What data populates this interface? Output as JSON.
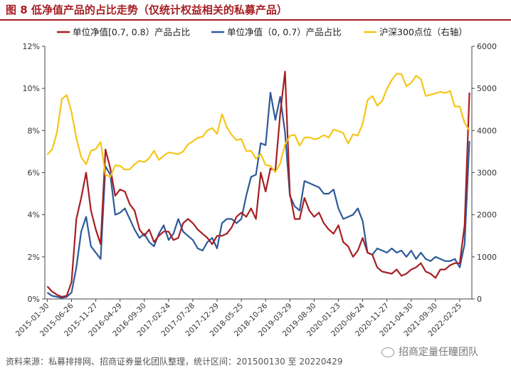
{
  "figure": {
    "title": "图 8  低净值产品的占比走势（仅统计权益相关的私募产品）",
    "footer": "资料来源：私募排排网、招商证券量化团队整理，统计区间：201500130 至 20220429",
    "watermark": "招商定量任瞳团队"
  },
  "chart_data": {
    "type": "line",
    "legend_position": "top",
    "grid": false,
    "x": [
      "2015-01-30",
      "2015-02-27",
      "2015-03-31",
      "2015-04-30",
      "2015-05-29",
      "2015-06-26",
      "2015-07-31",
      "2015-08-31",
      "2015-09-30",
      "2015-10-30",
      "2015-11-27",
      "2015-12-31",
      "2016-01-29",
      "2016-02-29",
      "2016-03-31",
      "2016-04-29",
      "2016-05-31",
      "2016-06-30",
      "2016-07-29",
      "2016-08-31",
      "2016-09-30",
      "2016-10-31",
      "2016-11-30",
      "2016-12-30",
      "2017-01-26",
      "2017-02-24",
      "2017-03-31",
      "2017-04-28",
      "2017-05-31",
      "2017-06-30",
      "2017-07-28",
      "2017-08-31",
      "2017-09-29",
      "2017-10-31",
      "2017-11-30",
      "2017-12-29",
      "2018-01-31",
      "2018-02-28",
      "2018-03-30",
      "2018-04-27",
      "2018-05-25",
      "2018-06-29",
      "2018-07-31",
      "2018-08-31",
      "2018-09-28",
      "2018-10-26",
      "2018-11-30",
      "2018-12-28",
      "2019-01-31",
      "2019-02-28",
      "2019-03-29",
      "2019-04-30",
      "2019-05-31",
      "2019-06-28",
      "2019-07-31",
      "2019-08-30",
      "2019-09-30",
      "2019-10-31",
      "2019-11-29",
      "2019-12-31",
      "2020-01-23",
      "2020-02-28",
      "2020-03-31",
      "2020-04-30",
      "2020-05-29",
      "2020-06-24",
      "2020-07-31",
      "2020-08-31",
      "2020-09-30",
      "2020-10-30",
      "2020-11-27",
      "2020-12-31",
      "2021-01-29",
      "2021-02-26",
      "2021-03-31",
      "2021-04-30",
      "2021-05-31",
      "2021-06-30",
      "2021-07-30",
      "2021-08-31",
      "2021-09-30",
      "2021-10-29",
      "2021-11-30",
      "2021-12-31",
      "2022-01-28",
      "2022-02-25",
      "2022-03-31",
      "2022-04-29"
    ],
    "x_tick_labels": [
      "2015-01-30",
      "2015-06-26",
      "2015-11-27",
      "2016-04-29",
      "2016-09-30",
      "2017-02-24",
      "2017-07-28",
      "2017-12-29",
      "2018-05-25",
      "2018-10-26",
      "2019-03-29",
      "2019-08-30",
      "2020-01-23",
      "2020-06-24",
      "2020-11-27",
      "2021-04-30",
      "2021-09-30",
      "2022-02-25"
    ],
    "y_left": {
      "ticks": [
        "0%",
        "2%",
        "4%",
        "6%",
        "8%",
        "10%",
        "12%"
      ],
      "min": 0,
      "max": 12
    },
    "y_right": {
      "ticks": [
        "0",
        "1000",
        "2000",
        "3000",
        "4000",
        "5000",
        "6000"
      ],
      "min": 0,
      "max": 6000
    },
    "series": [
      {
        "name": "单位净值[0.7, 0.8）产品占比",
        "axis": "left",
        "color": "#a61e22",
        "values": [
          0.6,
          0.35,
          0.2,
          0.1,
          0.15,
          0.8,
          3.8,
          4.8,
          6.0,
          4.2,
          3.3,
          2.6,
          7.1,
          6.2,
          4.9,
          5.2,
          5.1,
          4.5,
          4.2,
          3.3,
          3.0,
          3.3,
          2.7,
          3.0,
          3.2,
          3.2,
          2.8,
          2.9,
          3.6,
          3.8,
          3.6,
          3.3,
          3.1,
          2.9,
          2.6,
          3.0,
          3.0,
          3.1,
          3.4,
          3.9,
          4.1,
          3.9,
          4.3,
          3.8,
          6.0,
          5.1,
          6.2,
          6.1,
          8.8,
          10.8,
          5.0,
          3.8,
          3.8,
          4.8,
          4.2,
          3.9,
          4.1,
          3.6,
          3.3,
          3.1,
          3.5,
          2.7,
          2.5,
          2.0,
          2.3,
          2.9,
          2.2,
          2.1,
          1.5,
          1.3,
          1.25,
          1.2,
          1.4,
          1.1,
          1.2,
          1.4,
          1.5,
          1.7,
          1.3,
          1.2,
          1.0,
          1.4,
          1.4,
          1.6,
          1.7,
          1.7,
          3.5,
          9.8
        ]
      },
      {
        "name": "单位净值（0, 0.7）产品占比",
        "axis": "left",
        "color": "#2d5a9a",
        "values": [
          0.3,
          0.15,
          0.1,
          0.05,
          0.1,
          0.3,
          1.5,
          3.2,
          3.9,
          2.5,
          2.2,
          1.9,
          6.3,
          5.9,
          4.0,
          4.1,
          4.3,
          3.8,
          3.3,
          2.9,
          3.1,
          2.7,
          2.5,
          3.1,
          3.5,
          2.8,
          3.1,
          3.8,
          3.2,
          3.0,
          2.8,
          2.4,
          2.3,
          2.7,
          2.9,
          2.4,
          3.6,
          3.8,
          3.8,
          3.6,
          3.8,
          4.9,
          5.8,
          5.9,
          7.4,
          7.3,
          9.8,
          8.5,
          9.6,
          7.9,
          4.9,
          4.4,
          4.2,
          5.6,
          5.5,
          5.4,
          5.3,
          5.0,
          5.0,
          5.2,
          4.3,
          3.8,
          3.9,
          4.0,
          4.3,
          3.7,
          2.2,
          2.1,
          2.4,
          2.3,
          2.2,
          2.4,
          2.2,
          2.3,
          2.0,
          2.3,
          1.9,
          2.2,
          1.9,
          1.8,
          2.0,
          1.9,
          1.8,
          1.8,
          1.9,
          1.5,
          2.6,
          7.5
        ]
      },
      {
        "name": "沪深300点位（右轴）",
        "axis": "right",
        "color": "#f5c518",
        "values": [
          3430,
          3550,
          3950,
          4750,
          4840,
          4440,
          3820,
          3370,
          3200,
          3520,
          3560,
          3730,
          2950,
          2900,
          3170,
          3160,
          3070,
          3080,
          3200,
          3280,
          3250,
          3340,
          3520,
          3300,
          3400,
          3480,
          3460,
          3440,
          3500,
          3670,
          3740,
          3830,
          3850,
          4000,
          4060,
          3920,
          4390,
          4080,
          3900,
          3770,
          3800,
          3510,
          3520,
          3330,
          3440,
          3180,
          3160,
          3010,
          3220,
          3670,
          3870,
          3900,
          3640,
          3830,
          3840,
          3790,
          3820,
          3890,
          3830,
          4020,
          3990,
          3940,
          3690,
          3910,
          3880,
          4160,
          4720,
          4820,
          4590,
          4700,
          4990,
          5200,
          5350,
          5340,
          5050,
          5130,
          5300,
          5220,
          4820,
          4850,
          4880,
          4920,
          4890,
          4940,
          4570,
          4570,
          4180,
          4000
        ]
      }
    ]
  }
}
